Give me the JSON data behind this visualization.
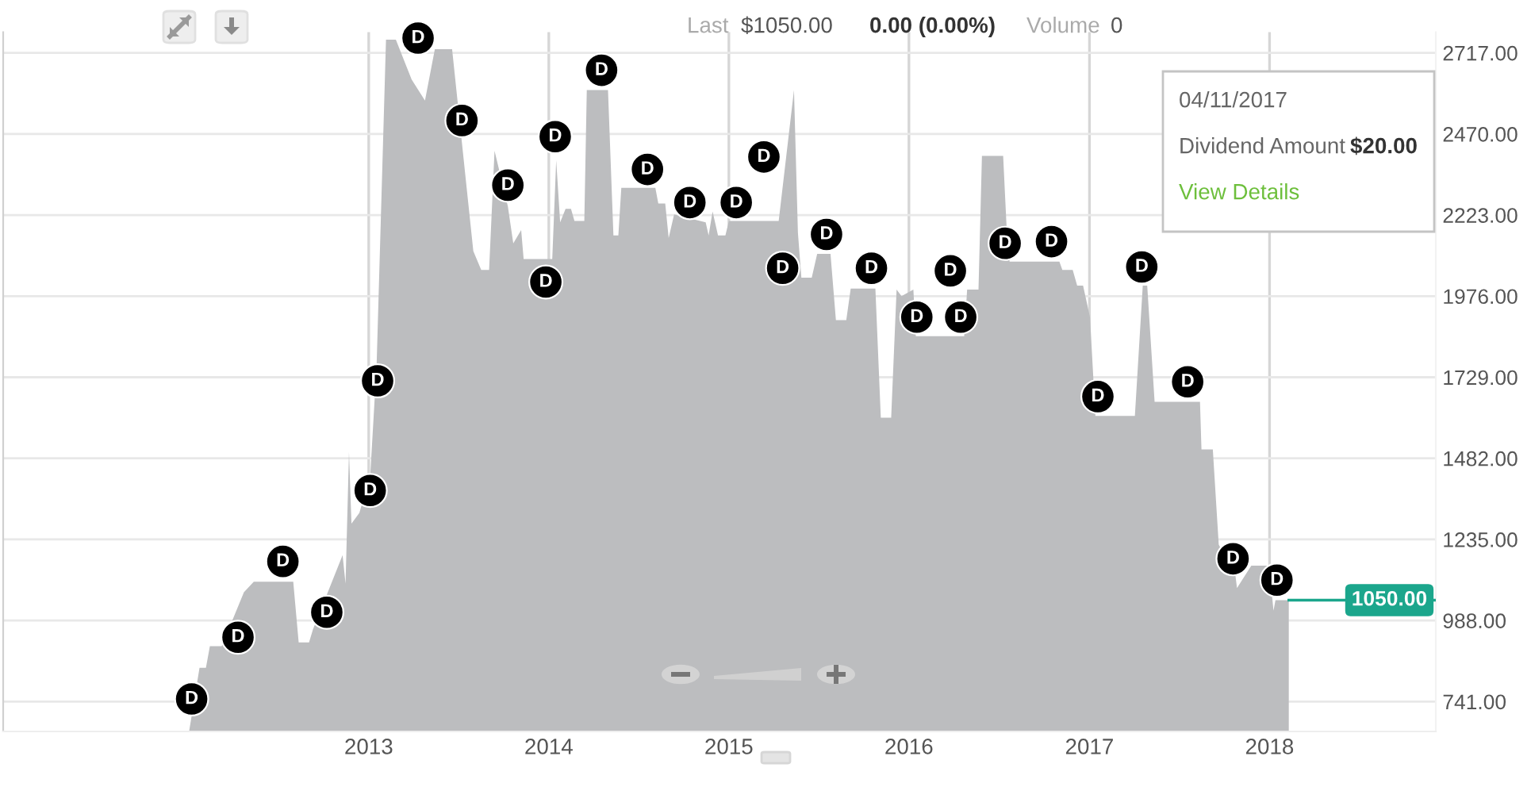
{
  "chart_data": {
    "type": "area",
    "x": [
      "2012-01-03",
      "2012-01-24",
      "2012-02-06",
      "2012-02-14",
      "2012-03-09",
      "2012-04-23",
      "2012-05-13",
      "2012-08-01",
      "2012-08-12",
      "2012-09-02",
      "2012-09-10",
      "2012-11-09",
      "2012-11-15",
      "2012-11-22",
      "2012-11-27",
      "2012-12-13",
      "2013-01-04",
      "2013-01-17",
      "2013-02-05",
      "2013-02-25",
      "2013-03-29",
      "2013-04-25",
      "2013-05-15",
      "2013-06-19",
      "2013-08-01",
      "2013-08-17",
      "2013-09-02",
      "2013-09-13",
      "2013-10-10",
      "2013-10-21",
      "2013-11-06",
      "2013-11-11",
      "2014-01-08",
      "2014-01-16",
      "2014-01-24",
      "2014-02-04",
      "2014-02-15",
      "2014-02-22",
      "2014-03-14",
      "2014-03-19",
      "2014-05-01",
      "2014-05-12",
      "2014-05-22",
      "2014-05-28",
      "2014-08-05",
      "2014-08-11",
      "2014-08-25",
      "2014-09-01",
      "2014-09-12",
      "2014-11-15",
      "2014-11-21",
      "2014-11-29",
      "2014-12-10",
      "2014-12-25",
      "2015-01-01",
      "2015-04-12",
      "2015-05-13",
      "2015-05-21",
      "2015-05-28",
      "2015-06-18",
      "2015-06-29",
      "2015-07-26",
      "2015-08-06",
      "2015-08-27",
      "2015-09-05",
      "2015-10-25",
      "2015-11-05",
      "2015-11-26",
      "2015-12-07",
      "2015-12-17",
      "2016-01-10",
      "2016-01-15",
      "2016-04-22",
      "2016-04-28",
      "2016-05-21",
      "2016-05-28",
      "2016-07-10",
      "2016-07-17",
      "2016-07-23",
      "2016-11-01",
      "2016-11-07",
      "2016-11-28",
      "2016-12-07",
      "2016-12-19",
      "2017-01-02",
      "2017-01-13",
      "2017-04-03",
      "2017-04-19",
      "2017-04-28",
      "2017-05-13",
      "2017-08-13",
      "2017-08-16",
      "2017-09-08",
      "2017-09-20",
      "2017-10-24",
      "2017-10-27",
      "2017-11-25",
      "2017-12-31",
      "2018-01-09",
      "2018-01-13",
      "2018-02-09"
    ],
    "series": [
      {
        "color": "#bcbdbf",
        "values": [
          651,
          844,
          844,
          910,
          910,
          1074,
          1106,
          1106,
          921,
          921,
          961,
          1187,
          1100,
          1501,
          1283,
          1316,
          1428,
          1767,
          2757,
          2757,
          2636,
          2572,
          2728,
          2728,
          2113,
          2056,
          2056,
          2419,
          2250,
          2137,
          2177,
          2089,
          2089,
          2390,
          2201,
          2242,
          2242,
          2205,
          2205,
          2604,
          2604,
          2161,
          2161,
          2306,
          2306,
          2258,
          2258,
          2153,
          2225,
          2201,
          2161,
          2234,
          2161,
          2161,
          2205,
          2205,
          2604,
          2169,
          2032,
          2032,
          2105,
          2105,
          1903,
          1903,
          1999,
          1999,
          1606,
          1606,
          1996,
          1976,
          1996,
          1854,
          1854,
          1996,
          1996,
          2403,
          2403,
          2185,
          2081,
          2081,
          2056,
          2056,
          2008,
          2008,
          1912,
          1611,
          1611,
          2008,
          2008,
          1654,
          1654,
          1509,
          1509,
          1219,
          1123,
          1087,
          1155,
          1155,
          1018,
          1050,
          1050
        ]
      }
    ],
    "xlim": [
      "2010-12-22",
      "2018-12-04"
    ],
    "xticks": [
      "2013",
      "2014",
      "2015",
      "2016",
      "2017",
      "2018"
    ],
    "ylim": [
      650,
      2780
    ],
    "yticks": [
      {
        "value": 741,
        "label": "741.00"
      },
      {
        "value": 988,
        "label": "988.00"
      },
      {
        "value": 1235,
        "label": "1235.00"
      },
      {
        "value": 1482,
        "label": "1482.00"
      },
      {
        "value": 1729,
        "label": "1729.00"
      },
      {
        "value": 1976,
        "label": "1976.00"
      },
      {
        "value": 2223,
        "label": "2223.00"
      },
      {
        "value": 2470,
        "label": "2470.00"
      },
      {
        "value": 2717,
        "label": "2717.00"
      }
    ],
    "grid": true,
    "ref_lines": [
      {
        "axis": "y",
        "value": 1050,
        "label": "1050.00",
        "color": "#1ba68c"
      }
    ],
    "annotations": [
      "Last",
      "$1050.00",
      "0.00 (0.00%)",
      "Volume",
      "0",
      "04/11/2017",
      "Dividend Amount",
      "$20.00",
      "View Details",
      {
        "text": "D",
        "x": "2012-01-08",
        "y": 749
      },
      {
        "text": "D",
        "x": "2012-04-11",
        "y": 937
      },
      {
        "text": "D",
        "x": "2012-07-11",
        "y": 1168
      },
      {
        "text": "D",
        "x": "2012-10-08",
        "y": 1013
      },
      {
        "text": "D",
        "x": "2013-01-04",
        "y": 1384
      },
      {
        "text": "D",
        "x": "2013-01-19",
        "y": 1718
      },
      {
        "text": "D",
        "x": "2013-04-11",
        "y": 2762
      },
      {
        "text": "D",
        "x": "2013-07-09",
        "y": 2511
      },
      {
        "text": "D",
        "x": "2013-10-10",
        "y": 2314
      },
      {
        "text": "D",
        "x": "2013-12-26",
        "y": 2019
      },
      {
        "text": "D",
        "x": "2014-01-14",
        "y": 2462
      },
      {
        "text": "D",
        "x": "2014-04-18",
        "y": 2664
      },
      {
        "text": "D",
        "x": "2014-07-20",
        "y": 2362
      },
      {
        "text": "D",
        "x": "2014-10-14",
        "y": 2261
      },
      {
        "text": "D",
        "x": "2015-01-16",
        "y": 2261
      },
      {
        "text": "D",
        "x": "2015-03-13",
        "y": 2400
      },
      {
        "text": "D",
        "x": "2015-04-20",
        "y": 2061
      },
      {
        "text": "D",
        "x": "2015-07-18",
        "y": 2164
      },
      {
        "text": "D",
        "x": "2015-10-17",
        "y": 2061
      },
      {
        "text": "D",
        "x": "2016-01-17",
        "y": 1912
      },
      {
        "text": "D",
        "x": "2016-03-25",
        "y": 2053
      },
      {
        "text": "D",
        "x": "2016-04-15",
        "y": 1912
      },
      {
        "text": "D",
        "x": "2016-07-14",
        "y": 2137
      },
      {
        "text": "D",
        "x": "2016-10-16",
        "y": 2142
      },
      {
        "text": "D",
        "x": "2017-01-18",
        "y": 1670
      },
      {
        "text": "D",
        "x": "2017-04-17",
        "y": 2065
      },
      {
        "text": "D",
        "x": "2017-07-19",
        "y": 1715
      },
      {
        "text": "D",
        "x": "2017-10-19",
        "y": 1176
      },
      {
        "text": "D",
        "x": "2018-01-16",
        "y": 1111
      }
    ]
  }
}
